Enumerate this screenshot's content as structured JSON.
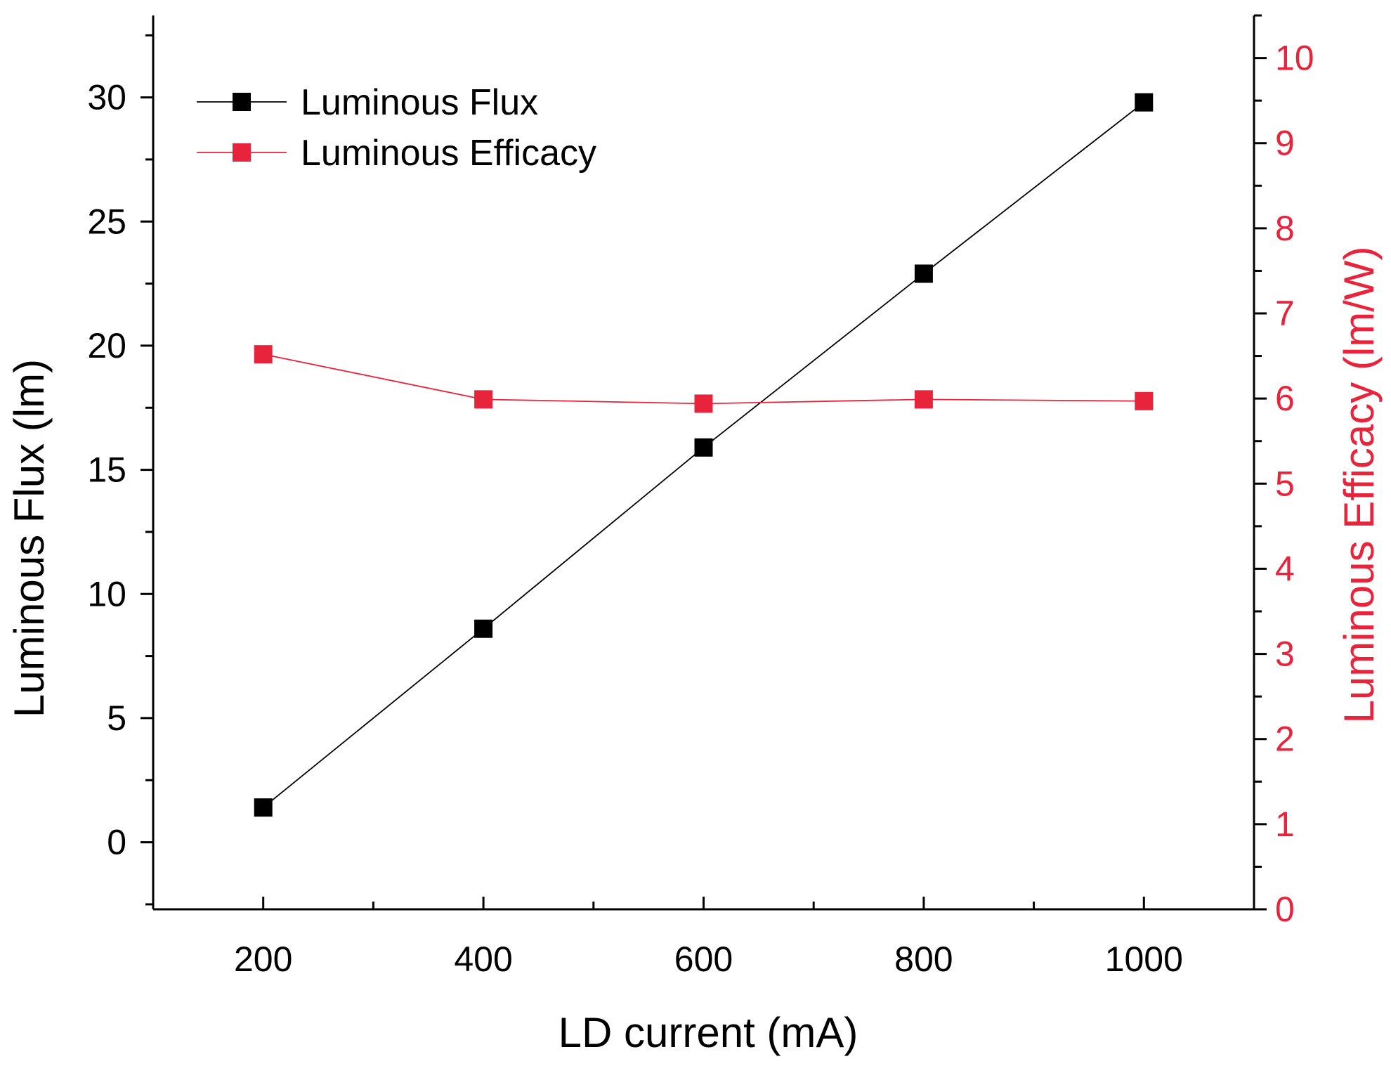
{
  "chart_data": {
    "type": "line",
    "xlabel": "LD current (mA)",
    "ylabel": "Luminous Flux (lm)",
    "y2label": "Luminous Efficacy (lm/W)",
    "xlim": [
      100,
      1100
    ],
    "ylim": [
      -2.7,
      33.3
    ],
    "y2lim": [
      0,
      10.5
    ],
    "xticks": [
      200,
      400,
      600,
      800,
      1000
    ],
    "yticks": [
      0,
      5,
      10,
      15,
      20,
      25,
      30
    ],
    "y2ticks": [
      0,
      1,
      2,
      3,
      4,
      5,
      6,
      7,
      8,
      9,
      10
    ],
    "series": [
      {
        "name": "Luminous Flux",
        "axis": "left",
        "color": "#000000",
        "x": [
          200,
          400,
          600,
          800,
          1000
        ],
        "values": [
          1.4,
          8.6,
          15.9,
          22.9,
          29.8
        ]
      },
      {
        "name": "Luminous Efficacy",
        "axis": "right",
        "color": "#e8243c",
        "x": [
          200,
          400,
          600,
          800,
          1000
        ],
        "values": [
          6.52,
          5.99,
          5.94,
          5.99,
          5.97
        ]
      }
    ],
    "legend": "top-left"
  }
}
